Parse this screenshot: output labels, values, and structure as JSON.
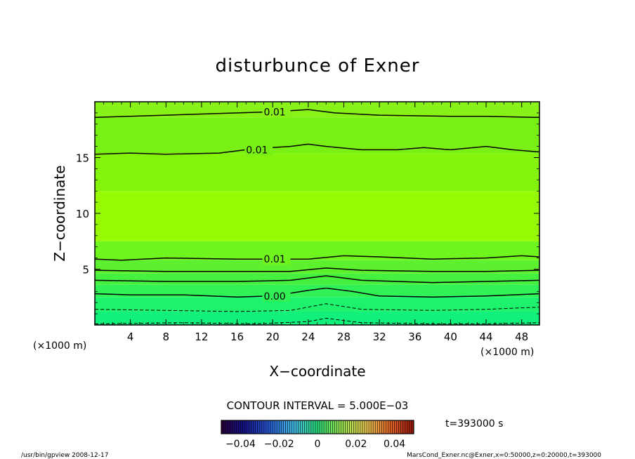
{
  "chart_data": {
    "type": "contour",
    "title": "disturbunce of Exner",
    "xlabel": "X−coordinate",
    "ylabel": "Z−coordinate",
    "x_unit": "(×1000 m)",
    "y_unit": "(×1000 m)",
    "xlim": [
      0,
      50
    ],
    "ylim": [
      0,
      20
    ],
    "x_ticks": [
      4,
      8,
      12,
      16,
      20,
      24,
      28,
      32,
      36,
      40,
      44,
      48
    ],
    "y_ticks": [
      5,
      10,
      15
    ],
    "contour_interval_text": "CONTOUR INTERVAL = 5.000E−03",
    "time_label": "t=393000  s",
    "colorbar_ticks": [
      {
        "value": -0.04,
        "label": "−0.04"
      },
      {
        "value": -0.02,
        "label": "−0.02"
      },
      {
        "value": 0,
        "label": "0"
      },
      {
        "value": 0.02,
        "label": "0.02"
      },
      {
        "value": 0.04,
        "label": "0.04"
      }
    ],
    "colorbar_range": [
      -0.05,
      0.05
    ],
    "contours": [
      {
        "label": "0.01",
        "style": "solid",
        "label_x": 19,
        "points": [
          [
            0,
            18.6
          ],
          [
            8,
            18.8
          ],
          [
            16,
            19.0
          ],
          [
            20,
            19.1
          ],
          [
            24,
            19.3
          ],
          [
            27,
            19.0
          ],
          [
            32,
            18.8
          ],
          [
            40,
            18.7
          ],
          [
            44,
            18.7
          ],
          [
            50,
            18.6
          ]
        ]
      },
      {
        "label": "0.01",
        "style": "solid",
        "label_x": 17,
        "points": [
          [
            0,
            15.3
          ],
          [
            4,
            15.4
          ],
          [
            8,
            15.3
          ],
          [
            14,
            15.4
          ],
          [
            18,
            15.8
          ],
          [
            22,
            16.0
          ],
          [
            24,
            16.2
          ],
          [
            26,
            16.0
          ],
          [
            30,
            15.7
          ],
          [
            34,
            15.7
          ],
          [
            37,
            15.9
          ],
          [
            40,
            15.7
          ],
          [
            44,
            16.0
          ],
          [
            47,
            15.7
          ],
          [
            50,
            15.5
          ]
        ]
      },
      {
        "label": "0.01",
        "style": "solid",
        "label_x": 19,
        "points": [
          [
            0,
            5.9
          ],
          [
            3,
            5.8
          ],
          [
            8,
            6.0
          ],
          [
            16,
            5.9
          ],
          [
            24,
            5.9
          ],
          [
            28,
            6.2
          ],
          [
            32,
            6.1
          ],
          [
            38,
            5.9
          ],
          [
            44,
            6.0
          ],
          [
            48,
            6.2
          ],
          [
            50,
            6.1
          ]
        ]
      },
      {
        "label": "",
        "style": "solid",
        "label_x": null,
        "points": [
          [
            0,
            4.9
          ],
          [
            8,
            4.8
          ],
          [
            16,
            4.8
          ],
          [
            22,
            4.8
          ],
          [
            26,
            5.1
          ],
          [
            30,
            4.9
          ],
          [
            38,
            4.8
          ],
          [
            44,
            4.8
          ],
          [
            50,
            4.9
          ]
        ]
      },
      {
        "label": "",
        "style": "solid",
        "label_x": null,
        "points": [
          [
            0,
            4.0
          ],
          [
            8,
            3.9
          ],
          [
            16,
            3.9
          ],
          [
            22,
            4.0
          ],
          [
            26,
            4.4
          ],
          [
            30,
            4.0
          ],
          [
            38,
            3.8
          ],
          [
            44,
            3.9
          ],
          [
            50,
            4.0
          ]
        ]
      },
      {
        "label": "0.00",
        "style": "solid",
        "label_x": 19,
        "points": [
          [
            0,
            2.8
          ],
          [
            4,
            2.7
          ],
          [
            10,
            2.7
          ],
          [
            16,
            2.5
          ],
          [
            20,
            2.6
          ],
          [
            24,
            3.1
          ],
          [
            26,
            3.3
          ],
          [
            29,
            3.0
          ],
          [
            32,
            2.6
          ],
          [
            38,
            2.5
          ],
          [
            44,
            2.6
          ],
          [
            50,
            2.8
          ]
        ]
      },
      {
        "label": "",
        "style": "dashed",
        "label_x": null,
        "points": [
          [
            0,
            1.4
          ],
          [
            8,
            1.3
          ],
          [
            16,
            1.2
          ],
          [
            22,
            1.3
          ],
          [
            26,
            1.9
          ],
          [
            30,
            1.4
          ],
          [
            38,
            1.3
          ],
          [
            44,
            1.4
          ],
          [
            50,
            1.6
          ]
        ]
      },
      {
        "label": "",
        "style": "dashed",
        "label_x": null,
        "points": [
          [
            0,
            0.1
          ],
          [
            10,
            0.2
          ],
          [
            18,
            0.1
          ],
          [
            24,
            0.3
          ],
          [
            26,
            0.6
          ],
          [
            30,
            0.2
          ],
          [
            38,
            0.1
          ],
          [
            44,
            0.1
          ],
          [
            50,
            0.2
          ]
        ]
      }
    ],
    "color_bands": [
      {
        "z_from": 0,
        "z_to": 1.2,
        "color": "#10f07a"
      },
      {
        "z_from": 1.2,
        "z_to": 2.5,
        "color": "#1ef26c"
      },
      {
        "z_from": 2.5,
        "z_to": 3.6,
        "color": "#30f257"
      },
      {
        "z_from": 3.6,
        "z_to": 4.6,
        "color": "#46f03f"
      },
      {
        "z_from": 4.6,
        "z_to": 5.8,
        "color": "#5cf02e"
      },
      {
        "z_from": 5.8,
        "z_to": 7.5,
        "color": "#70f41e"
      },
      {
        "z_from": 7.5,
        "z_to": 12.0,
        "color": "#96fa05"
      },
      {
        "z_from": 12.0,
        "z_to": 15.4,
        "color": "#84f40c"
      },
      {
        "z_from": 15.4,
        "z_to": 18.6,
        "color": "#78f015"
      },
      {
        "z_from": 18.6,
        "z_to": 20.0,
        "color": "#88f218"
      }
    ]
  },
  "footer": {
    "left": "/usr/bin/gpview   2008-12-17",
    "right": "MarsCond_Exner.nc@Exner,x=0:50000,z=0:20000,t=393000"
  }
}
